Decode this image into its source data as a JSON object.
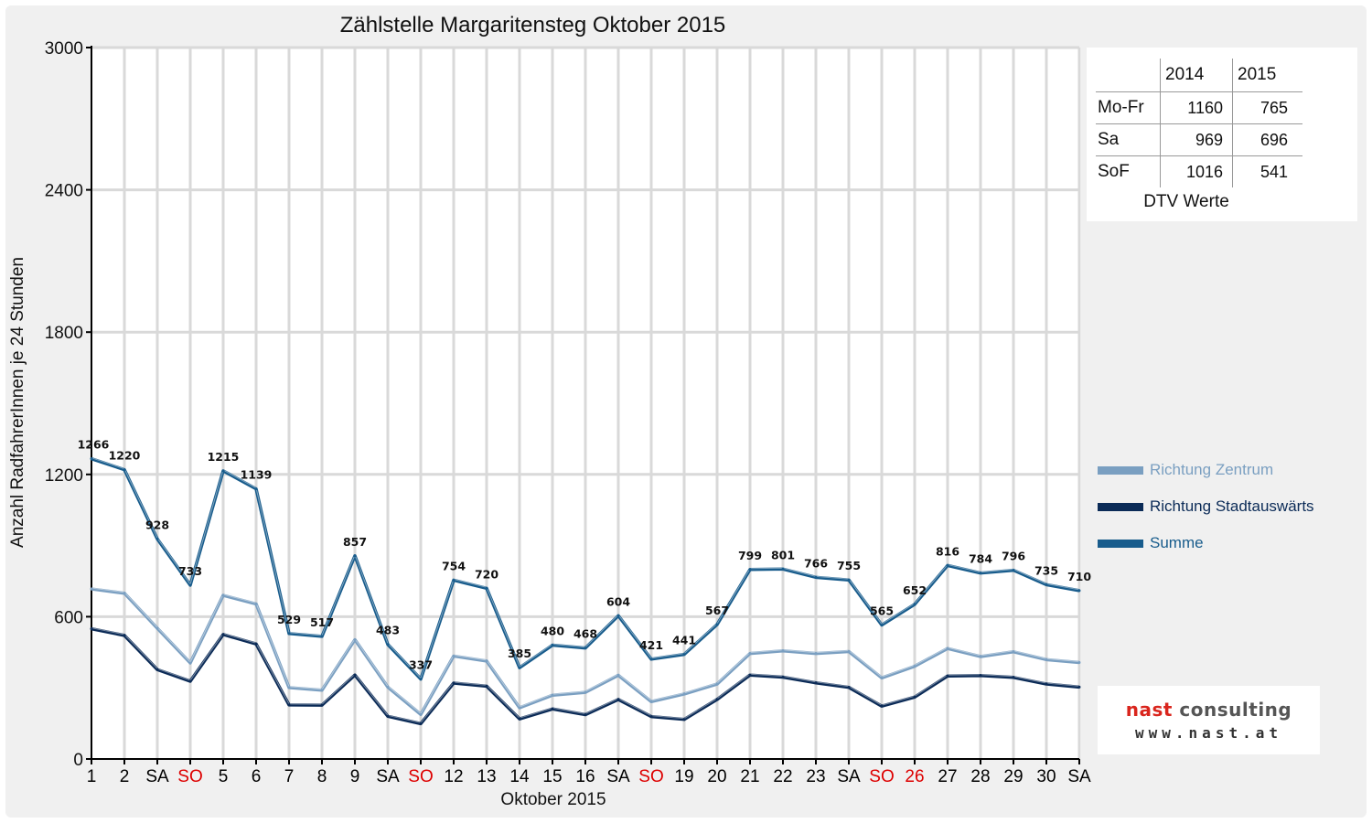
{
  "chart_title": "Zählstelle Margaritensteg Oktober 2015",
  "chart_data": {
    "type": "line",
    "title": "Zählstelle Margaritensteg Oktober 2015",
    "xlabel": "Oktober 2015",
    "ylabel": "Anzahl RadfahrerInnen je 24 Stunden",
    "ylim": [
      0,
      3000
    ],
    "yticks": [
      0,
      600,
      1200,
      1800,
      2400,
      3000
    ],
    "categories": [
      "1",
      "2",
      "SA",
      "SO",
      "5",
      "6",
      "7",
      "8",
      "9",
      "SA",
      "SO",
      "12",
      "13",
      "14",
      "15",
      "16",
      "SA",
      "SO",
      "19",
      "20",
      "21",
      "22",
      "23",
      "SA",
      "SO",
      "26",
      "27",
      "28",
      "29",
      "30",
      "SA"
    ],
    "category_colors": [
      "#000000",
      "#000000",
      "#000000",
      "#dd0000",
      "#000000",
      "#000000",
      "#000000",
      "#000000",
      "#000000",
      "#000000",
      "#dd0000",
      "#000000",
      "#000000",
      "#000000",
      "#000000",
      "#000000",
      "#000000",
      "#dd0000",
      "#000000",
      "#000000",
      "#000000",
      "#000000",
      "#000000",
      "#000000",
      "#dd0000",
      "#dd0000",
      "#000000",
      "#000000",
      "#000000",
      "#000000",
      "#000000"
    ],
    "series": [
      {
        "name": "Richtung Zentrum",
        "color": "#7a9fc1",
        "values": [
          717,
          699,
          551,
          405,
          690,
          654,
          301,
          290,
          503,
          303,
          188,
          434,
          413,
          216,
          269,
          281,
          353,
          242,
          274,
          316,
          445,
          456,
          445,
          453,
          342,
          391,
          466,
          432,
          452,
          419,
          407
        ]
      },
      {
        "name": "Richtung Stadtauswärts",
        "color": "#0b2b57",
        "values": [
          549,
          521,
          377,
          328,
          525,
          485,
          228,
          227,
          354,
          180,
          149,
          320,
          307,
          169,
          211,
          187,
          251,
          179,
          167,
          251,
          354,
          345,
          321,
          302,
          223,
          261,
          350,
          352,
          344,
          316,
          303
        ]
      },
      {
        "name": "Summe",
        "color": "#185c8c",
        "values": [
          1266,
          1220,
          928,
          733,
          1215,
          1139,
          529,
          517,
          857,
          483,
          337,
          754,
          720,
          385,
          480,
          468,
          604,
          421,
          441,
          567,
          799,
          801,
          766,
          755,
          565,
          652,
          816,
          784,
          796,
          735,
          710
        ]
      }
    ],
    "data_labels": [
      "1266",
      "1220",
      "928",
      "733",
      "1215",
      "1139",
      "529",
      "517",
      "857",
      "483",
      "337",
      "754",
      "720",
      "385",
      "480",
      "468",
      "604",
      "421",
      "441",
      "567",
      "799",
      "801",
      "766",
      "755",
      "565",
      "652",
      "816",
      "784",
      "796",
      "735",
      "710"
    ],
    "grid": true,
    "legend_position": "right"
  },
  "dtv_table": {
    "headers": [
      "",
      "2014",
      "2015"
    ],
    "rows": [
      {
        "label": "Mo-Fr",
        "y2014": "1160",
        "y2015": "765"
      },
      {
        "label": "Sa",
        "y2014": "969",
        "y2015": "696"
      },
      {
        "label": "SoF",
        "y2014": "1016",
        "y2015": "541"
      }
    ],
    "caption": "DTV Werte"
  },
  "legend": [
    {
      "label": "Richtung Zentrum",
      "color": "#7a9fc1"
    },
    {
      "label": "Richtung Stadtauswärts",
      "color": "#0b2b57"
    },
    {
      "label": "Summe",
      "color": "#185c8c"
    }
  ],
  "logo": {
    "word1": "nast",
    "word2": "consulting",
    "url": "www.nast.at"
  }
}
